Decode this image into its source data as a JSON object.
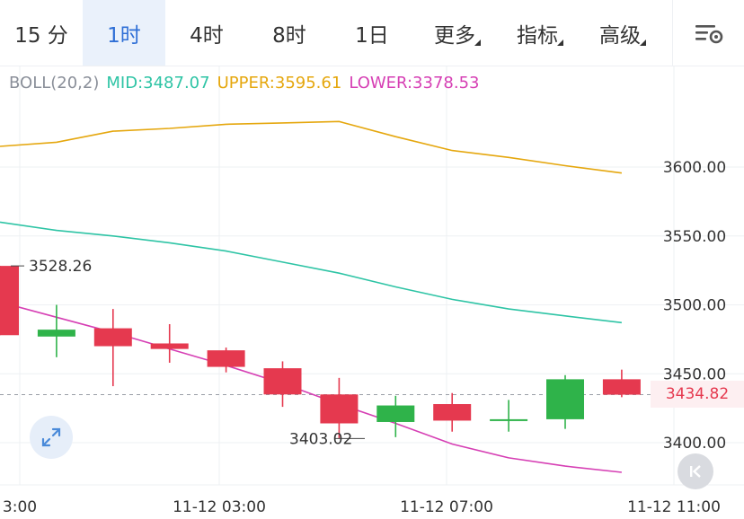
{
  "tabs": [
    {
      "label": "15 分",
      "active": false,
      "has_menu": false
    },
    {
      "label": "1时",
      "active": true,
      "has_menu": false
    },
    {
      "label": "4时",
      "active": false,
      "has_menu": false
    },
    {
      "label": "8时",
      "active": false,
      "has_menu": false
    },
    {
      "label": "1日",
      "active": false,
      "has_menu": false
    },
    {
      "label": "更多",
      "active": false,
      "has_menu": true
    },
    {
      "label": "指标",
      "active": false,
      "has_menu": true
    },
    {
      "label": "高级",
      "active": false,
      "has_menu": true
    }
  ],
  "settings_icon": "chart-settings-icon",
  "indicator": {
    "name": "BOLL(20,2)",
    "mid": "MID:3487.07",
    "upper": "UPPER:3595.61",
    "lower": "LOWER:3378.53"
  },
  "colors": {
    "up": "#2fb34a",
    "down": "#e5394f",
    "mid": "#2ec4a5",
    "upper": "#e5a70e",
    "lower": "#d63fb4",
    "active_tab": "#2f6fd6"
  },
  "current_price": "3434.82",
  "high_marker": "3528.26",
  "low_marker": "3403.02",
  "expand_icon": "expand-icon",
  "rewind_icon": "rewind-icon",
  "chart_data": {
    "type": "candlestick",
    "y_ticks": [
      "3600.00",
      "3550.00",
      "3500.00",
      "3450.00",
      "3400.00"
    ],
    "x_ticks": [
      "3:00",
      "11-12 03:00",
      "11-12 07:00",
      "11-12 11:00"
    ],
    "ylim": [
      3370,
      3660
    ],
    "candles": [
      {
        "open": 3528.26,
        "close": 3478,
        "high": 3528.26,
        "low": 3478
      },
      {
        "open": 3477,
        "close": 3482,
        "high": 3500,
        "low": 3462
      },
      {
        "open": 3483,
        "close": 3470,
        "high": 3497,
        "low": 3441
      },
      {
        "open": 3472,
        "close": 3468,
        "high": 3486,
        "low": 3458
      },
      {
        "open": 3467,
        "close": 3455,
        "high": 3469,
        "low": 3451
      },
      {
        "open": 3454,
        "close": 3435,
        "high": 3459,
        "low": 3426
      },
      {
        "open": 3435,
        "close": 3414,
        "high": 3447,
        "low": 3403.02
      },
      {
        "open": 3415,
        "close": 3427,
        "high": 3434,
        "low": 3404
      },
      {
        "open": 3428,
        "close": 3416,
        "high": 3436,
        "low": 3408
      },
      {
        "open": 3416,
        "close": 3417,
        "high": 3431,
        "low": 3408
      },
      {
        "open": 3417,
        "close": 3446,
        "high": 3449,
        "low": 3410
      },
      {
        "open": 3446,
        "close": 3434.82,
        "high": 3453,
        "low": 3433
      }
    ],
    "upper": [
      3615,
      3618,
      3626,
      3628,
      3631,
      3632,
      3633,
      3622,
      3612,
      3607,
      3601,
      3595.61
    ],
    "mid": [
      3560,
      3554,
      3550,
      3545,
      3539,
      3531,
      3523,
      3513,
      3504,
      3497,
      3492,
      3487.07
    ],
    "lower": [
      3502,
      3491,
      3480,
      3468,
      3456,
      3443,
      3428,
      3414,
      3399,
      3389,
      3383,
      3378.53
    ]
  }
}
